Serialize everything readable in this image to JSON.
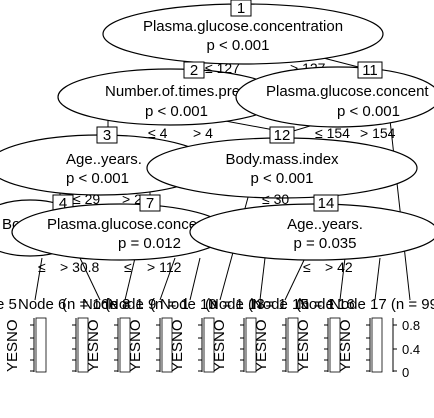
{
  "tree": {
    "inner_nodes": [
      {
        "id": "1",
        "variable": "Plasma.glucose.concentration",
        "p": "p < 0.001"
      },
      {
        "id": "2",
        "variable": "Number.of.times.pre",
        "p": "p < 0.001"
      },
      {
        "id": "11",
        "variable": "Plasma.glucose.concent",
        "p": "p < 0.001"
      },
      {
        "id": "3",
        "variable": "Age..years.",
        "p": "p < 0.001"
      },
      {
        "id": "12",
        "variable": "Body.mass.index",
        "p": "p < 0.001"
      },
      {
        "id": "4",
        "variable": "Bo",
        "p": ""
      },
      {
        "id": "7",
        "variable": "Plasma.glucose.conce",
        "p": "p = 0.012"
      },
      {
        "id": "14",
        "variable": "Age..years.",
        "p": "p = 0.035"
      }
    ],
    "edge_labels": {
      "n1_left": "≤ 127",
      "n1_right": "> 127",
      "n2_left": "≤ 4",
      "n2_right": "> 4",
      "n11_left": "≤ 154",
      "n11_right": "> 154",
      "n3_left": "≤ 29",
      "n3_right": "> 29",
      "n12_left": "≤ 30",
      "n4_left": "≤",
      "n4_right": "> 30.8",
      "n7_left": "≤",
      "n7_right": "> 112",
      "n14_left": "≤",
      "n14_right": "> 42"
    },
    "terminal_headers": [
      "e 5",
      "Node 6",
      "Node 8",
      "Node 9",
      "Node 10",
      "Node 13",
      "Node 15",
      "Node 16",
      "Node 17 (n = 99"
    ],
    "terminal_n_fragments": [
      "(n = 16",
      "(n = 1",
      "(n = 1",
      "(n = 1",
      "(n = 1",
      "(n = 1"
    ],
    "class_labels": [
      "YES",
      "NO"
    ],
    "axis_ticks": [
      "0.8",
      "0.4",
      "0"
    ]
  }
}
